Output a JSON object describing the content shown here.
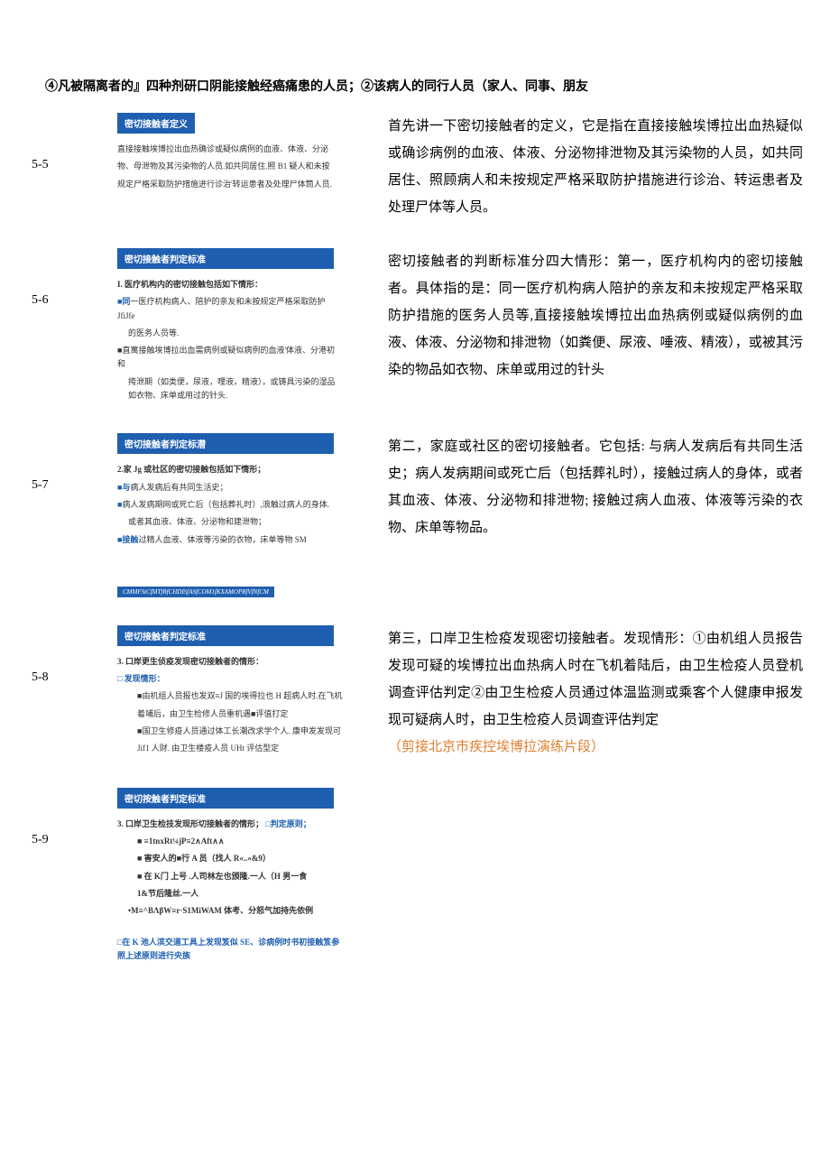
{
  "colors": {
    "slide_bg": "#1f5fb0",
    "slide_text": "#ffffff",
    "body_text": "#000000",
    "orange": "#e08030",
    "kw_blue": "#1f5fb0"
  },
  "header": "④凡被隔离者的』四种剂研口阴能接触经癌痛患的人员；②该病人的同行人员（家人、同事、朋友",
  "sections": [
    {
      "label": "5-5",
      "slide": {
        "title": "密切接触者定义",
        "lines": [
          "直接接触埃博拉出血热确诊或疑似病例的血液、体液、分泌",
          "物、母泄物及其污染物的人员.如共同居住.照 B1 疑人和未按",
          "规定尸格采取防护措施进行诊治'转运患者及处理尸体筒人员."
        ]
      },
      "body": [
        "首先讲一下密切接触者的定义，它是指在直接接触埃博拉出血热疑似或确诊病例的血液、体液、分泌物排泄物及其污染物的人员，如共同居住、照顾病人和未按规定严格采取防护措施进行诊治、转运患者及处理尸体等人员。"
      ]
    },
    {
      "label": "5-6",
      "slide": {
        "title": "密切接触者判定标准",
        "heading": "I. 医疗机构内的密切接触包括如下情形：",
        "items": [
          {
            "prefix_kw": "■同",
            "text": "一医疗机构病人、陪护的亲友和未按规定严格采取防护 JfiJfe",
            "cont": "的医务人员等."
          },
          {
            "prefix": "■",
            "text": "直寓接触埃博拉出血需病例或疑似病例的血液'体液、分港初和",
            "cont": "挎泄期（如类便，尿液，哩液，精液），或铸具污染的湿品如衣物、床单或用过的针头."
          }
        ]
      },
      "body": [
        "密切接触者的判断标准分四大情形：第一，医疗机构内的密切接触者。具体指的是：同一医疗机构病人陪护的亲友和未按规定严格采取防护措施的医务人员等,直接接触埃博拉出血热病例或疑似病例的血液、体液、分泌物和排泄物（如粪便、尿液、唾液、精液），或被其污染的物品如衣物、床单或用过的针头"
      ]
    },
    {
      "label": "5-7",
      "slide": {
        "title": "密切接触者判定标潜",
        "heading": "2.家 Jg 或社区的密切接触包括如下情形；",
        "items": [
          {
            "prefix_kw": "■与",
            "text": "病人发病后有共同生活史；"
          },
          {
            "prefix_kw": "■",
            "text": "病人发病期网或死亡后（包括葬礼时）,浪触过病人的身体.",
            "cont": "或者其血液、体液、分泌物和建泄物；"
          },
          {
            "prefix_kw": "■接触",
            "text": "过精人血液、体液等污染的衣物，床单等物 SM"
          }
        ],
        "strip": "CMMFStCfMTfRfCHDISfASfCOM1fKXAMOPRfVfNfCM"
      },
      "body": [
        "第二，家庭或社区的密切接触者。它包括: 与病人发病后有共同生活史；病人发病期间或死亡后（包括葬礼时），接触过病人的身体，或者其血液、体液、分泌物和排泄物; 接触过病人血液、体液等污染的衣物、床单等物品。"
      ]
    },
    {
      "label": "5-8",
      "slide": {
        "title": "密切接触者判定标准",
        "heading": "3. 口岸更生侦疫发现密切接触者的情形：",
        "sub": "□ 发现情形：",
        "items": [
          {
            "prefix": "■",
            "text": "由机组人员报也发双≡J 国的埃得拉也 H 超病人时.在飞机",
            "cont": "着埔后，由卫生检修人员重机遇■评值打定"
          },
          {
            "prefix": "■",
            "text": "国卫生修疫人员通过体工长潮改求学个人. 康申发发现可",
            "cont": "Jif1 人财. 由卫生楼疫人员 UHt 评估型定"
          }
        ]
      },
      "body": [
        "第三，口岸卫生检疫发现密切接触者。发现情形：①由机组人员报告发现可疑的埃博拉出血热病人时在飞机着陆后，由卫生检疫人员登机调查评估判定②由卫生检疫人员通过体温监测或乘客个人健康申报发现可疑病人时，由卫生检疫人员调查评估判定",
        {
          "orange": "（剪接北京市疾控埃博拉演练片段）"
        }
      ]
    },
    {
      "label": "5-9",
      "slide": {
        "title": "密切按触者判定标准",
        "heading": "3. 口岸卫生检技发现形切接触者的情形；",
        "sub": "□判定原则；",
        "bullets": [
          "■    ≡1tnxRt¼jP≡2∧Aft∧∧",
          "■    害安人的■行 A 员（找人 R«..«&9）",
          "■    在 K门 上号 .人司林左也颁隆.一人（H 男一食",
          "1&节后隆丝.一人",
          "•M≡^BΛβW≡r·S1MiWAM 体考、分怒气加持先依例"
        ],
        "footer": "□在 K 池人滨交道工具上发现笈似 SE、诊病例时书初接触笈参照上述原则进行央族"
      },
      "body": []
    }
  ]
}
